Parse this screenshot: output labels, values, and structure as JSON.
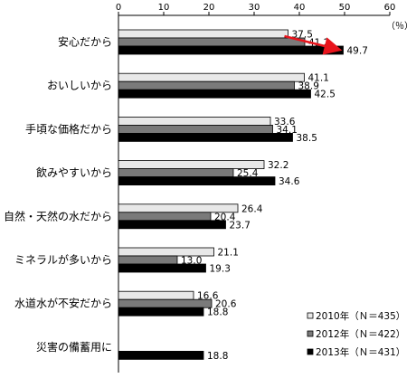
{
  "chart_data": {
    "type": "bar",
    "orientation": "horizontal",
    "unit": "（％）",
    "xlim": [
      0,
      60
    ],
    "xticks": [
      0,
      10,
      20,
      30,
      40,
      50,
      60
    ],
    "grid": false,
    "legend_position": "bottom-right",
    "categories": [
      "安心だから",
      "おいしいから",
      "手頃な価格だから",
      "飲みやすいから",
      "自然・天然の水だから",
      "ミネラルが多いから",
      "水道水が不安だから",
      "災害の備蓄用に"
    ],
    "series": [
      {
        "name": "2010年（Ｎ＝435）",
        "color": "#e8e8e8",
        "values": [
          37.5,
          41.1,
          33.6,
          32.2,
          26.4,
          21.1,
          16.6,
          null
        ]
      },
      {
        "name": "2012年（Ｎ＝422）",
        "color": "#7a7a7a",
        "values": [
          41.2,
          38.9,
          34.1,
          25.4,
          20.4,
          13.0,
          20.6,
          null
        ]
      },
      {
        "name": "2013年（Ｎ＝431）",
        "color": "#000000",
        "values": [
          49.7,
          42.5,
          38.5,
          34.6,
          23.7,
          19.3,
          18.8,
          18.8
        ]
      }
    ],
    "value_labels": [
      [
        "37.5",
        "41.1",
        "33.6",
        "32.2",
        "26.4",
        "21.1",
        "16.6",
        ""
      ],
      [
        "41.2",
        "38.9",
        "34.1",
        "25.4",
        "20.4",
        "13.0",
        "20.6",
        ""
      ],
      [
        "49.7",
        "42.5",
        "38.5",
        "34.6",
        "23.7",
        "19.3",
        "18.8",
        "18.8"
      ]
    ],
    "annotation": {
      "type": "arrow",
      "color": "#e8141c",
      "category": "安心だから",
      "from_series": 0,
      "to_series": 2
    }
  }
}
